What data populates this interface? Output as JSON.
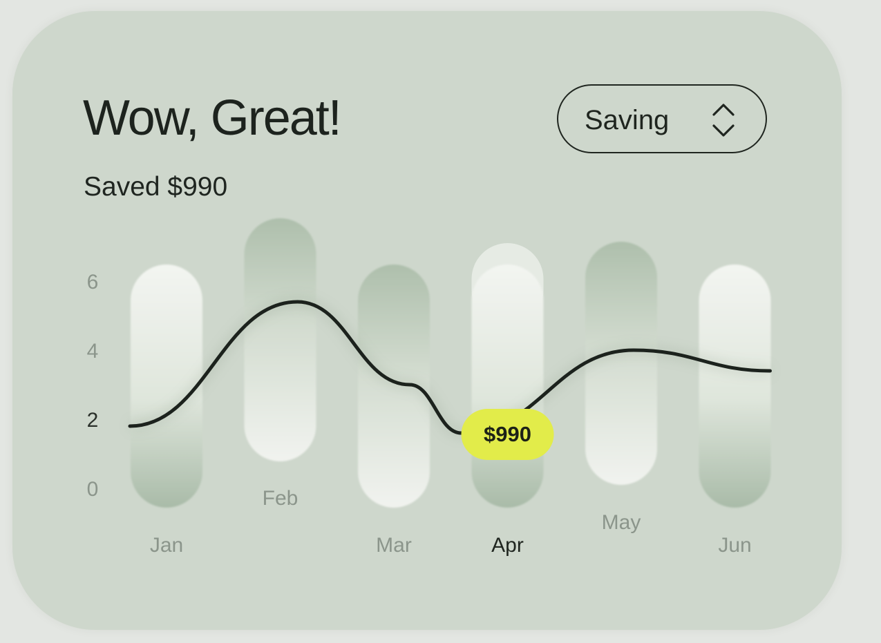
{
  "card": {
    "title": "Wow, Great!",
    "subtitle": "Saved $990"
  },
  "selector": {
    "label": "Saving",
    "icon": "chevron-up-down-icon"
  },
  "colors": {
    "background": "#e3e6e2",
    "card": "#ced7cc",
    "text": "#1d231e",
    "line": "#1c221d",
    "highlight": "#e2ec4a",
    "tick": "#8b958b"
  },
  "chart_data": {
    "type": "line",
    "categories": [
      "Jan",
      "Feb",
      "Mar",
      "Apr",
      "May",
      "Jun"
    ],
    "y_ticks": [
      "6",
      "4",
      "2",
      "0"
    ],
    "ylim": [
      0,
      6
    ],
    "active_category": "Apr",
    "active_y_tick": "2",
    "series": [
      {
        "values": [
          1.8,
          5.4,
          3.0,
          1.6,
          4.0,
          3.4
        ]
      }
    ],
    "highlight": {
      "category": "Apr",
      "label": "$990"
    },
    "grid": false,
    "legend": "none"
  }
}
